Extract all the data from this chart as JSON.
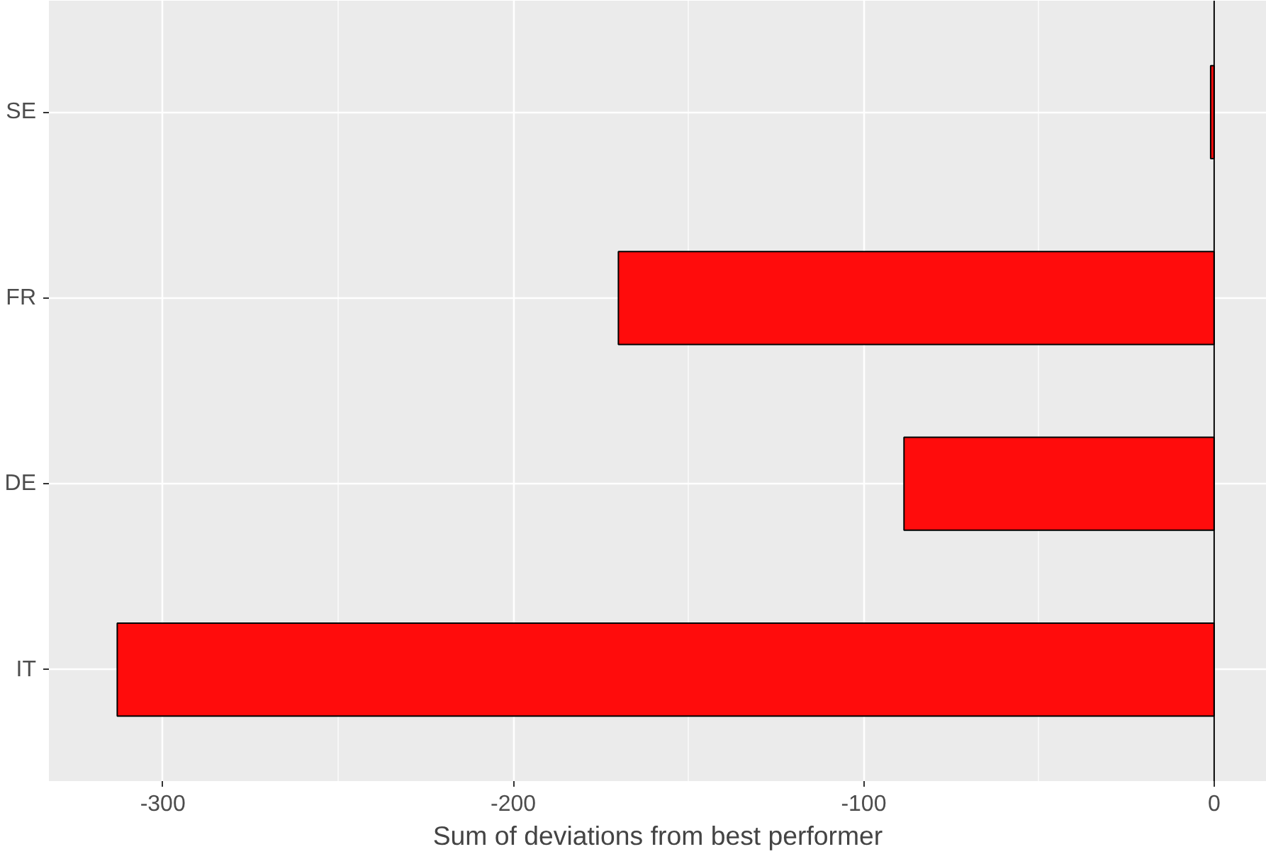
{
  "chart_data": {
    "type": "bar",
    "orientation": "horizontal",
    "xlabel": "Sum of deviations from best performer",
    "categories": [
      "SE",
      "FR",
      "DE",
      "IT"
    ],
    "values": [
      -1,
      -170,
      -88.5,
      -313
    ],
    "color": "#ff0c0c",
    "xlim": [
      -332.5,
      15
    ],
    "xticks": [
      -300,
      -200,
      -100,
      0
    ],
    "ref_lines": [
      {
        "axis": "x",
        "value": 0,
        "color": "#000000"
      }
    ],
    "grid": true
  }
}
